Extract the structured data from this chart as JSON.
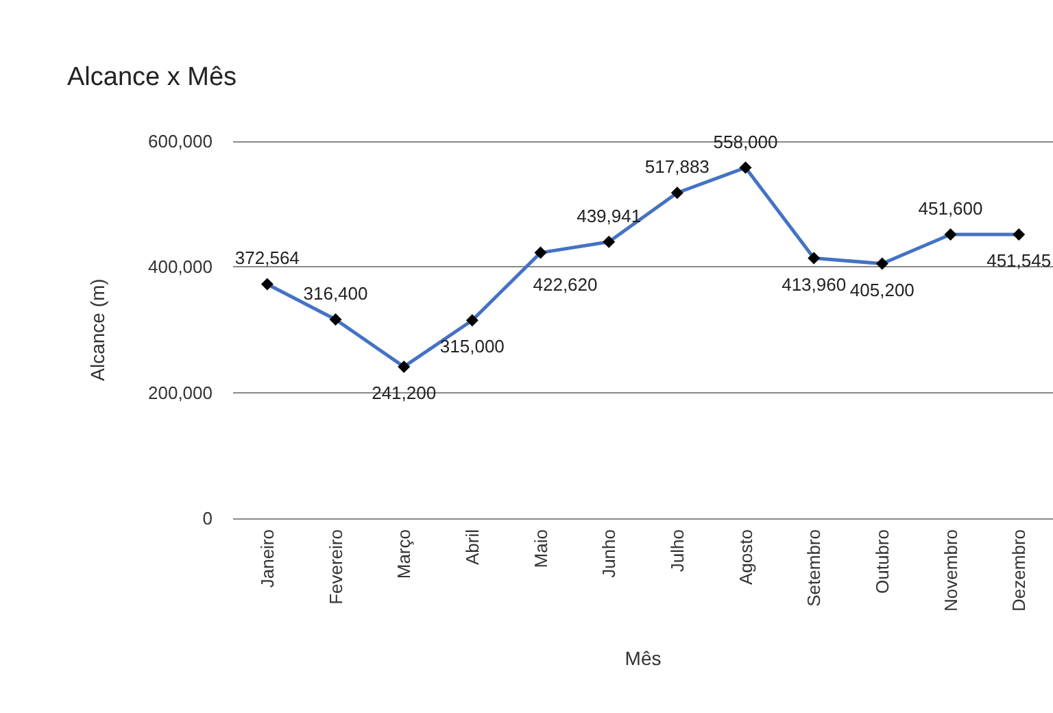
{
  "chart_data": {
    "type": "line",
    "title": "Alcance x Mês",
    "xlabel": "Mês",
    "ylabel": "Alcance (m)",
    "categories": [
      "Janeiro",
      "Fevereiro",
      "Março",
      "Abril",
      "Maio",
      "Junho",
      "Julho",
      "Agosto",
      "Setembro",
      "Outubro",
      "Novembro",
      "Dezembro"
    ],
    "series": [
      {
        "color": "#4472c4",
        "values": [
          372564,
          316400,
          241200,
          315000,
          422620,
          439941,
          517883,
          558000,
          413960,
          405200,
          451600,
          451545
        ],
        "value_labels": [
          "372,564",
          "316,400",
          "241,200",
          "315,000",
          "422,620",
          "439,941",
          "517,883",
          "558,000",
          "413,960",
          "405,200",
          "451,600",
          "451,545"
        ]
      }
    ],
    "ylim": [
      0,
      600000
    ],
    "yticks": [
      0,
      {
        "value": 200000,
        "label": "200,000"
      },
      {
        "value": 400000,
        "label": "400,000"
      },
      {
        "value": 600000,
        "label": "600,000"
      }
    ],
    "grid": "y",
    "marker": "diamond",
    "line_style": "solid"
  }
}
